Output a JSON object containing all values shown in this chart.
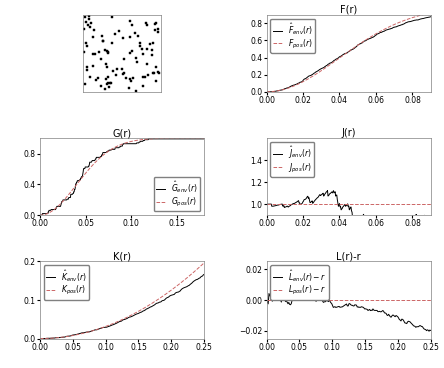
{
  "intensity": 100,
  "seed": 42,
  "subplot_titles": [
    "F(r)",
    "G(r)",
    "J(r)",
    "K(r)",
    "L(r)-r"
  ],
  "F_xlim": [
    0,
    0.09
  ],
  "F_ylim": [
    0,
    0.9
  ],
  "G_xlim": [
    0,
    0.18
  ],
  "G_ylim": [
    0,
    1.0
  ],
  "J_xlim": [
    0,
    0.09
  ],
  "J_ylim": [
    0.9,
    1.6
  ],
  "K_xlim": [
    0,
    0.25
  ],
  "K_ylim": [
    0,
    0.2
  ],
  "L_xlim": [
    0,
    0.25
  ],
  "L_ylim": [
    -0.025,
    0.025
  ],
  "line_color": "#000000",
  "theory_color": "#cc6666",
  "bg_color": "#ffffff",
  "legend_fontsize": 5.5,
  "title_fontsize": 7,
  "tick_fontsize": 5.5
}
